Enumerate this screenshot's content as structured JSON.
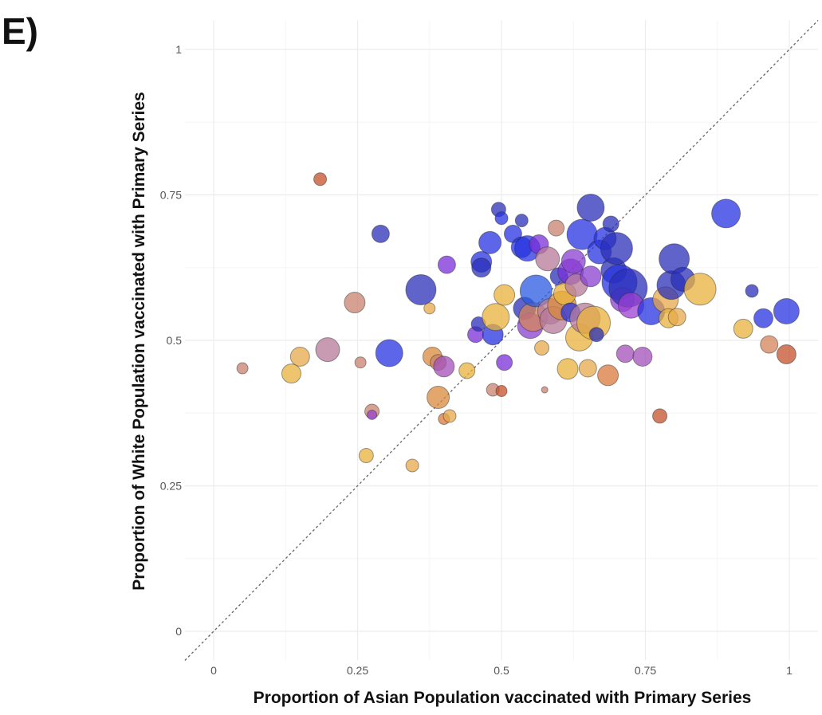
{
  "panel_label": "E)",
  "chart_data": {
    "type": "scatter",
    "title": "",
    "xlabel": "Proportion of Asian Population vaccinated with Primary Series",
    "ylabel": "Proportion of White Population vaccinated with Primary Series",
    "xlim": [
      -0.05,
      1.05
    ],
    "ylim": [
      -0.05,
      1.05
    ],
    "x_ticks": [
      0,
      0.25,
      0.5,
      0.75,
      1
    ],
    "x_tick_labels": [
      "0",
      "0.25",
      "0.5",
      "0.75",
      "1"
    ],
    "y_ticks": [
      0,
      0.25,
      0.5,
      0.75,
      1
    ],
    "y_tick_labels": [
      "0",
      "0.25",
      "0.5",
      "0.75",
      "1"
    ],
    "grid": true,
    "reference_line": "y = x (dashed)",
    "legend": "none",
    "points": [
      {
        "x": 0.05,
        "y": 0.452,
        "size": 7,
        "color": "#c8826d"
      },
      {
        "x": 0.15,
        "y": 0.472,
        "size": 12,
        "color": "#e6a84a"
      },
      {
        "x": 0.135,
        "y": 0.443,
        "size": 12,
        "color": "#e8b23c"
      },
      {
        "x": 0.185,
        "y": 0.777,
        "size": 8,
        "color": "#c4502a"
      },
      {
        "x": 0.198,
        "y": 0.484,
        "size": 15,
        "color": "#b57a9a"
      },
      {
        "x": 0.245,
        "y": 0.565,
        "size": 13,
        "color": "#c8826d"
      },
      {
        "x": 0.255,
        "y": 0.462,
        "size": 7,
        "color": "#c8826d"
      },
      {
        "x": 0.265,
        "y": 0.302,
        "size": 9,
        "color": "#e8b23c"
      },
      {
        "x": 0.275,
        "y": 0.378,
        "size": 9,
        "color": "#c8826d"
      },
      {
        "x": 0.275,
        "y": 0.372,
        "size": 6,
        "color": "#9a3fd0"
      },
      {
        "x": 0.29,
        "y": 0.683,
        "size": 11,
        "color": "#2a2fb8"
      },
      {
        "x": 0.305,
        "y": 0.478,
        "size": 17,
        "color": "#2733e0"
      },
      {
        "x": 0.345,
        "y": 0.285,
        "size": 8,
        "color": "#e6a84a"
      },
      {
        "x": 0.36,
        "y": 0.587,
        "size": 19,
        "color": "#2a2fb8"
      },
      {
        "x": 0.375,
        "y": 0.555,
        "size": 7,
        "color": "#e6a84a"
      },
      {
        "x": 0.38,
        "y": 0.472,
        "size": 12,
        "color": "#d98a3c"
      },
      {
        "x": 0.39,
        "y": 0.462,
        "size": 10,
        "color": "#c8826d"
      },
      {
        "x": 0.39,
        "y": 0.402,
        "size": 14,
        "color": "#d98a3c"
      },
      {
        "x": 0.4,
        "y": 0.455,
        "size": 13,
        "color": "#a24fb8"
      },
      {
        "x": 0.4,
        "y": 0.365,
        "size": 7,
        "color": "#d97a3c"
      },
      {
        "x": 0.405,
        "y": 0.63,
        "size": 11,
        "color": "#7a2fd8"
      },
      {
        "x": 0.41,
        "y": 0.37,
        "size": 8,
        "color": "#e6a84a"
      },
      {
        "x": 0.44,
        "y": 0.448,
        "size": 10,
        "color": "#e8b23c"
      },
      {
        "x": 0.455,
        "y": 0.51,
        "size": 10,
        "color": "#7a2fd8"
      },
      {
        "x": 0.46,
        "y": 0.528,
        "size": 9,
        "color": "#2a2fb8"
      },
      {
        "x": 0.465,
        "y": 0.635,
        "size": 13,
        "color": "#2733e0"
      },
      {
        "x": 0.465,
        "y": 0.625,
        "size": 12,
        "color": "#2a2fb8"
      },
      {
        "x": 0.48,
        "y": 0.668,
        "size": 14,
        "color": "#2733e0"
      },
      {
        "x": 0.485,
        "y": 0.51,
        "size": 13,
        "color": "#2733e0"
      },
      {
        "x": 0.485,
        "y": 0.415,
        "size": 8,
        "color": "#c8826d"
      },
      {
        "x": 0.49,
        "y": 0.54,
        "size": 17,
        "color": "#e8b23c"
      },
      {
        "x": 0.495,
        "y": 0.725,
        "size": 9,
        "color": "#2a2fb8"
      },
      {
        "x": 0.5,
        "y": 0.71,
        "size": 8,
        "color": "#2733e0"
      },
      {
        "x": 0.5,
        "y": 0.413,
        "size": 7,
        "color": "#c4502a"
      },
      {
        "x": 0.505,
        "y": 0.462,
        "size": 10,
        "color": "#7a2fd8"
      },
      {
        "x": 0.505,
        "y": 0.578,
        "size": 13,
        "color": "#e8b23c"
      },
      {
        "x": 0.52,
        "y": 0.683,
        "size": 11,
        "color": "#2733e0"
      },
      {
        "x": 0.535,
        "y": 0.66,
        "size": 13,
        "color": "#2733e0"
      },
      {
        "x": 0.535,
        "y": 0.706,
        "size": 8,
        "color": "#2a2fb8"
      },
      {
        "x": 0.54,
        "y": 0.555,
        "size": 14,
        "color": "#2a2fb8"
      },
      {
        "x": 0.545,
        "y": 0.658,
        "size": 16,
        "color": "#2733e0"
      },
      {
        "x": 0.55,
        "y": 0.525,
        "size": 16,
        "color": "#8a3fd0"
      },
      {
        "x": 0.555,
        "y": 0.54,
        "size": 18,
        "color": "#d4845a"
      },
      {
        "x": 0.56,
        "y": 0.585,
        "size": 20,
        "color": "#2a5ae0"
      },
      {
        "x": 0.565,
        "y": 0.665,
        "size": 12,
        "color": "#7a2fd8"
      },
      {
        "x": 0.57,
        "y": 0.487,
        "size": 9,
        "color": "#e6a84a"
      },
      {
        "x": 0.575,
        "y": 0.415,
        "size": 4,
        "color": "#c8826d"
      },
      {
        "x": 0.58,
        "y": 0.64,
        "size": 15,
        "color": "#b57a9a"
      },
      {
        "x": 0.585,
        "y": 0.55,
        "size": 16,
        "color": "#b57a9a"
      },
      {
        "x": 0.59,
        "y": 0.535,
        "size": 17,
        "color": "#b57a9a"
      },
      {
        "x": 0.595,
        "y": 0.693,
        "size": 10,
        "color": "#c8826d"
      },
      {
        "x": 0.6,
        "y": 0.61,
        "size": 11,
        "color": "#2a2fb8"
      },
      {
        "x": 0.605,
        "y": 0.56,
        "size": 18,
        "color": "#d98a3c"
      },
      {
        "x": 0.61,
        "y": 0.58,
        "size": 14,
        "color": "#e8b23c"
      },
      {
        "x": 0.615,
        "y": 0.451,
        "size": 13,
        "color": "#e8b23c"
      },
      {
        "x": 0.62,
        "y": 0.548,
        "size": 12,
        "color": "#2733e0"
      },
      {
        "x": 0.62,
        "y": 0.618,
        "size": 16,
        "color": "#7a2fd8"
      },
      {
        "x": 0.625,
        "y": 0.636,
        "size": 15,
        "color": "#8a3fd0"
      },
      {
        "x": 0.63,
        "y": 0.595,
        "size": 14,
        "color": "#b57a9a"
      },
      {
        "x": 0.635,
        "y": 0.505,
        "size": 17,
        "color": "#e8b23c"
      },
      {
        "x": 0.64,
        "y": 0.682,
        "size": 19,
        "color": "#2733e0"
      },
      {
        "x": 0.645,
        "y": 0.538,
        "size": 19,
        "color": "#b57a9a"
      },
      {
        "x": 0.65,
        "y": 0.452,
        "size": 11,
        "color": "#e6a84a"
      },
      {
        "x": 0.655,
        "y": 0.728,
        "size": 17,
        "color": "#2a2fb8"
      },
      {
        "x": 0.655,
        "y": 0.61,
        "size": 13,
        "color": "#8a3fd0"
      },
      {
        "x": 0.66,
        "y": 0.53,
        "size": 21,
        "color": "#e8b23c"
      },
      {
        "x": 0.665,
        "y": 0.51,
        "size": 9,
        "color": "#2a2fb8"
      },
      {
        "x": 0.67,
        "y": 0.652,
        "size": 15,
        "color": "#2733e0"
      },
      {
        "x": 0.68,
        "y": 0.675,
        "size": 14,
        "color": "#2733e0"
      },
      {
        "x": 0.685,
        "y": 0.44,
        "size": 13,
        "color": "#d97a3c"
      },
      {
        "x": 0.69,
        "y": 0.7,
        "size": 10,
        "color": "#2a2fb8"
      },
      {
        "x": 0.695,
        "y": 0.62,
        "size": 16,
        "color": "#2a2fb8"
      },
      {
        "x": 0.7,
        "y": 0.658,
        "size": 20,
        "color": "#2a2fb8"
      },
      {
        "x": 0.705,
        "y": 0.6,
        "size": 22,
        "color": "#2733e0"
      },
      {
        "x": 0.71,
        "y": 0.57,
        "size": 15,
        "color": "#8a3fd0"
      },
      {
        "x": 0.715,
        "y": 0.477,
        "size": 11,
        "color": "#a24fb8"
      },
      {
        "x": 0.72,
        "y": 0.59,
        "size": 24,
        "color": "#2a2fb8"
      },
      {
        "x": 0.725,
        "y": 0.56,
        "size": 16,
        "color": "#9a3fd0"
      },
      {
        "x": 0.745,
        "y": 0.472,
        "size": 12,
        "color": "#a24fb8"
      },
      {
        "x": 0.76,
        "y": 0.55,
        "size": 17,
        "color": "#2733e0"
      },
      {
        "x": 0.775,
        "y": 0.37,
        "size": 9,
        "color": "#c4502a"
      },
      {
        "x": 0.785,
        "y": 0.57,
        "size": 16,
        "color": "#e6a84a"
      },
      {
        "x": 0.79,
        "y": 0.538,
        "size": 12,
        "color": "#e8b23c"
      },
      {
        "x": 0.795,
        "y": 0.595,
        "size": 18,
        "color": "#2a2fb8"
      },
      {
        "x": 0.8,
        "y": 0.64,
        "size": 19,
        "color": "#2a2fb8"
      },
      {
        "x": 0.805,
        "y": 0.54,
        "size": 11,
        "color": "#e6a84a"
      },
      {
        "x": 0.815,
        "y": 0.605,
        "size": 15,
        "color": "#2a2fb8"
      },
      {
        "x": 0.845,
        "y": 0.588,
        "size": 20,
        "color": "#e8b23c"
      },
      {
        "x": 0.89,
        "y": 0.718,
        "size": 18,
        "color": "#2733e0"
      },
      {
        "x": 0.92,
        "y": 0.52,
        "size": 12,
        "color": "#e8b23c"
      },
      {
        "x": 0.935,
        "y": 0.585,
        "size": 8,
        "color": "#2a2fb8"
      },
      {
        "x": 0.955,
        "y": 0.538,
        "size": 12,
        "color": "#2733e0"
      },
      {
        "x": 0.965,
        "y": 0.493,
        "size": 11,
        "color": "#d4845a"
      },
      {
        "x": 0.995,
        "y": 0.55,
        "size": 16,
        "color": "#2733e0"
      },
      {
        "x": 0.995,
        "y": 0.476,
        "size": 12,
        "color": "#c4502a"
      }
    ]
  }
}
